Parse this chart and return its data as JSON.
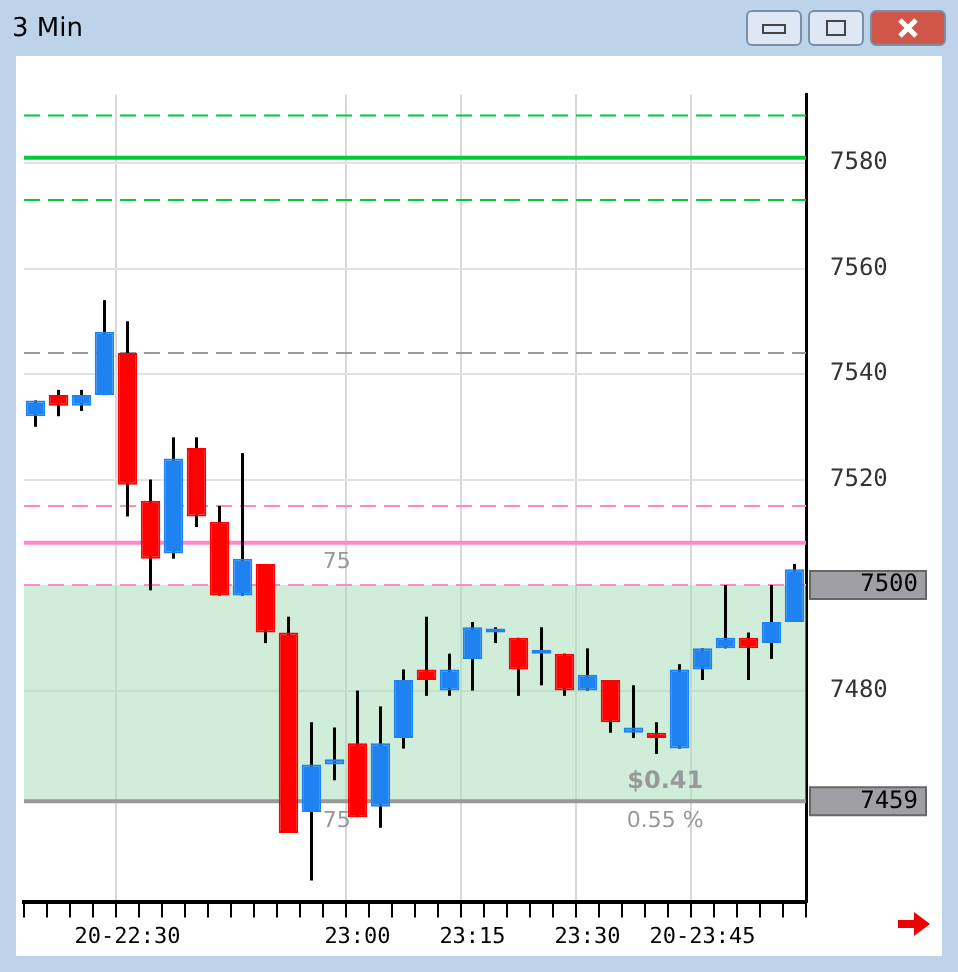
{
  "chart_data": {
    "type": "candlestick",
    "title": "3 Min",
    "categories": [
      null,
      null,
      null,
      null,
      "20-22:30",
      null,
      null,
      null,
      null,
      null,
      null,
      null,
      null,
      null,
      "23:00",
      null,
      null,
      null,
      null,
      "23:15",
      null,
      null,
      null,
      null,
      "23:30",
      null,
      null,
      null,
      null,
      "20-23:45",
      null,
      null,
      null,
      null
    ],
    "ohlc": [
      [
        7532,
        7535,
        7530,
        7535
      ],
      [
        7536,
        7537,
        7532,
        7534
      ],
      [
        7534,
        7537,
        7533,
        7536
      ],
      [
        7536,
        7554,
        7536,
        7548
      ],
      [
        7544,
        7550,
        7513,
        7519
      ],
      [
        7516,
        7520,
        7499,
        7505
      ],
      [
        7506,
        7528,
        7505,
        7524
      ],
      [
        7526,
        7528,
        7511,
        7513
      ],
      [
        7512,
        7515,
        7498,
        7498
      ],
      [
        7498,
        7525,
        7498,
        7505
      ],
      [
        7504,
        7504,
        7489,
        7491
      ],
      [
        7491,
        7494,
        7453,
        7453
      ],
      [
        7457,
        7474,
        7444,
        7466
      ],
      [
        7466,
        7473,
        7463,
        7467
      ],
      [
        7470,
        7480,
        7456,
        7456
      ],
      [
        7458,
        7477,
        7454,
        7470
      ],
      [
        7471,
        7484,
        7469,
        7482
      ],
      [
        7484,
        7494,
        7479,
        7482
      ],
      [
        7480,
        7487,
        7479,
        7484
      ],
      [
        7486,
        7493,
        7480,
        7492
      ],
      [
        7491,
        7492,
        7489,
        7491.5
      ],
      [
        7490,
        7490,
        7479,
        7484
      ],
      [
        7487,
        7492,
        7481,
        7487.5
      ],
      [
        7487,
        7487,
        7479,
        7480
      ],
      [
        7480,
        7488,
        7480,
        7483
      ],
      [
        7482,
        7482,
        7472,
        7474
      ],
      [
        7472,
        7481,
        7471,
        7473
      ],
      [
        7472,
        7474,
        7468,
        7471
      ],
      [
        7469,
        7485,
        7469,
        7484
      ],
      [
        7484,
        7488,
        7482,
        7488
      ],
      [
        7488,
        7500,
        7488,
        7490
      ],
      [
        7490,
        7491,
        7482,
        7488
      ],
      [
        7489,
        7500,
        7486,
        7493
      ],
      [
        7493,
        7504,
        7493,
        7503
      ]
    ],
    "colors": [
      "#1e82f0",
      "#ff0000",
      "#1e82f0",
      "#1e82f0",
      "#ff0000",
      "#ff0000",
      "#1e82f0",
      "#ff0000",
      "#ff0000",
      "#1e82f0",
      "#ff0000",
      "#ff0000",
      "#1e82f0",
      "#1e82f0",
      "#ff0000",
      "#1e82f0",
      "#1e82f0",
      "#ff0000",
      "#1e82f0",
      "#1e82f0",
      "#1e82f0",
      "#ff0000",
      "#1e82f0",
      "#ff0000",
      "#1e82f0",
      "#ff0000",
      "#1e82f0",
      "#ff0000",
      "#1e82f0",
      "#1e82f0",
      "#1e82f0",
      "#ff0000",
      "#1e82f0",
      "#1e82f0"
    ],
    "ylim": [
      7440,
      7593
    ],
    "yticks": [
      7480,
      7520,
      7540,
      7560,
      7580
    ],
    "ref_lines": [
      {
        "axis": "y",
        "value": 7589,
        "color": "#00cc33",
        "line_style": "dashed"
      },
      {
        "axis": "y",
        "value": 7581,
        "color": "#00cc33",
        "line_style": "solid"
      },
      {
        "axis": "y",
        "value": 7573,
        "color": "#00cc33",
        "line_style": "dashed"
      },
      {
        "axis": "y",
        "value": 7544,
        "color": "#999999",
        "line_style": "dashed"
      },
      {
        "axis": "y",
        "value": 7515,
        "color": "#ff88c8",
        "line_style": "dashed"
      },
      {
        "axis": "y",
        "value": 7508,
        "color": "#ff88c8",
        "line_style": "solid"
      },
      {
        "axis": "y",
        "value": 7500,
        "label": "7500",
        "color": "#ff88c8",
        "line_style": "dashed"
      },
      {
        "axis": "y",
        "value": 7459,
        "label": "7459",
        "color": "#999999",
        "line_style": "solid"
      }
    ],
    "bands": [
      {
        "axis": "y",
        "from": 7459,
        "to": 7500,
        "color": "#9fdcb4"
      }
    ],
    "annotations": [
      "75",
      "75",
      "$0.41",
      "0.55 %"
    ],
    "grid": true,
    "legend": false
  }
}
